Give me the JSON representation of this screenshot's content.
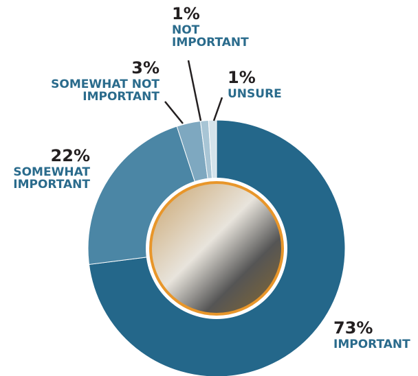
{
  "chart_data": {
    "type": "donut",
    "categories": [
      "IMPORTANT",
      "SOMEWHAT IMPORTANT",
      "SOMEWHAT NOT IMPORTANT",
      "NOT IMPORTANT",
      "UNSURE"
    ],
    "values": [
      73,
      22,
      3,
      1,
      1
    ],
    "value_labels": [
      "73%",
      "22%",
      "3%",
      "1%",
      "1%"
    ],
    "colors": [
      "#24678a",
      "#4b86a5",
      "#7ea8c0",
      "#a8c5d5",
      "#d4e3eb"
    ]
  }
}
